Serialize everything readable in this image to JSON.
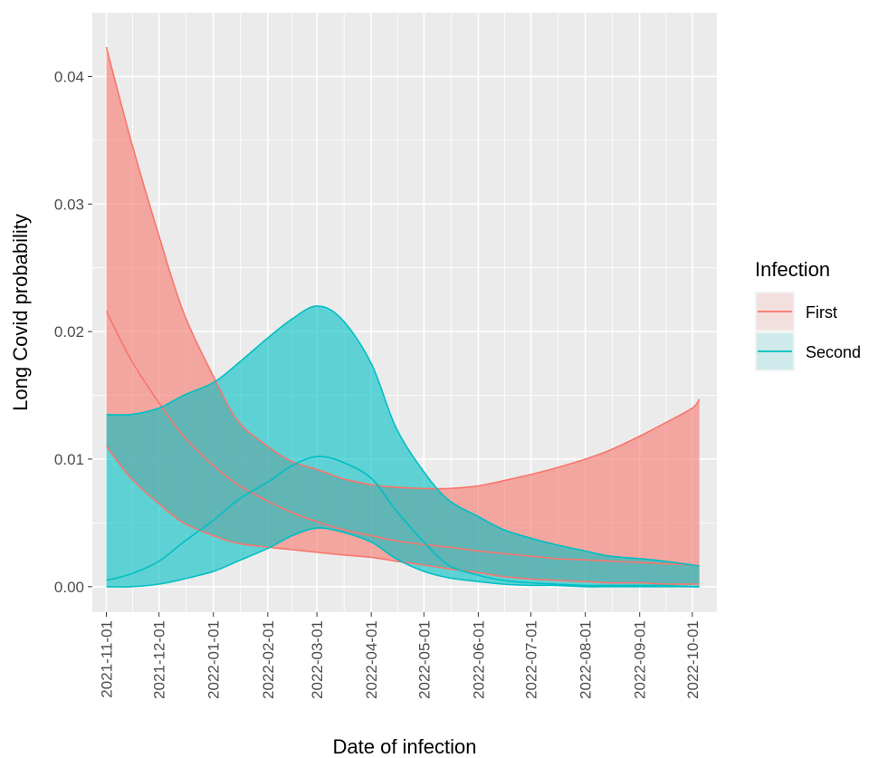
{
  "chart_data": {
    "type": "area",
    "xlabel": "Date of infection",
    "ylabel": "Long Covid probability",
    "xlim": [
      "2021-10-24",
      "2022-10-15"
    ],
    "ylim": [
      -0.002,
      0.045
    ],
    "x_ticks": [
      "2021-11-01",
      "2021-12-01",
      "2022-01-01",
      "2022-02-01",
      "2022-03-01",
      "2022-04-01",
      "2022-05-01",
      "2022-06-01",
      "2022-07-01",
      "2022-08-01",
      "2022-09-01",
      "2022-10-01"
    ],
    "y_ticks": [
      0.0,
      0.01,
      0.02,
      0.03,
      0.04
    ],
    "y_tick_labels": [
      "0.00",
      "0.01",
      "0.02",
      "0.03",
      "0.04"
    ],
    "grid": true,
    "legend": {
      "title": "Infection",
      "position": "right"
    },
    "series": [
      {
        "name": "First",
        "color": "#F8766D",
        "x": [
          "2021-11-01",
          "2021-11-15",
          "2021-12-01",
          "2021-12-15",
          "2022-01-01",
          "2022-01-15",
          "2022-02-01",
          "2022-02-15",
          "2022-03-01",
          "2022-03-15",
          "2022-04-01",
          "2022-04-15",
          "2022-05-01",
          "2022-05-15",
          "2022-06-01",
          "2022-06-15",
          "2022-07-01",
          "2022-07-15",
          "2022-08-01",
          "2022-08-15",
          "2022-09-01",
          "2022-09-15",
          "2022-10-01",
          "2022-10-05"
        ],
        "mid": [
          0.0216,
          0.0178,
          0.0144,
          0.0118,
          0.0095,
          0.008,
          0.0067,
          0.0058,
          0.0051,
          0.0045,
          0.004,
          0.0036,
          0.0033,
          0.0031,
          0.0028,
          0.0026,
          0.0024,
          0.0022,
          0.0021,
          0.002,
          0.0019,
          0.0018,
          0.0017,
          0.0016
        ],
        "upper": [
          0.0423,
          0.035,
          0.0275,
          0.0215,
          0.0165,
          0.013,
          0.011,
          0.0098,
          0.0092,
          0.0085,
          0.008,
          0.0078,
          0.0077,
          0.0077,
          0.0079,
          0.0083,
          0.0088,
          0.0093,
          0.01,
          0.0107,
          0.0118,
          0.0128,
          0.014,
          0.0147
        ],
        "lower": [
          0.011,
          0.0085,
          0.0065,
          0.005,
          0.004,
          0.0034,
          0.0031,
          0.0029,
          0.0027,
          0.0025,
          0.0023,
          0.002,
          0.0017,
          0.0014,
          0.0011,
          0.0008,
          0.0006,
          0.0005,
          0.0004,
          0.0003,
          0.0003,
          0.0002,
          0.0002,
          0.0002
        ]
      },
      {
        "name": "Second",
        "color": "#00BFC4",
        "x": [
          "2021-11-01",
          "2021-11-15",
          "2021-12-01",
          "2021-12-15",
          "2022-01-01",
          "2022-01-15",
          "2022-02-01",
          "2022-02-15",
          "2022-03-01",
          "2022-03-15",
          "2022-04-01",
          "2022-04-15",
          "2022-05-01",
          "2022-05-15",
          "2022-06-01",
          "2022-06-15",
          "2022-07-01",
          "2022-07-15",
          "2022-08-01",
          "2022-08-15",
          "2022-09-01",
          "2022-09-15",
          "2022-10-01",
          "2022-10-05"
        ],
        "mid": [
          0.0005,
          0.001,
          0.002,
          0.0035,
          0.0052,
          0.0068,
          0.0082,
          0.0095,
          0.0102,
          0.0098,
          0.0085,
          0.006,
          0.0035,
          0.0017,
          0.0009,
          0.0005,
          0.0003,
          0.0002,
          0.0001,
          0.0001,
          0.0001,
          0.0001,
          0.0,
          0.0
        ],
        "upper": [
          0.0135,
          0.0135,
          0.014,
          0.015,
          0.016,
          0.0175,
          0.0195,
          0.021,
          0.022,
          0.021,
          0.0175,
          0.0125,
          0.009,
          0.0068,
          0.0055,
          0.0045,
          0.0038,
          0.0033,
          0.0028,
          0.0024,
          0.0022,
          0.002,
          0.0017,
          0.0016
        ],
        "lower": [
          0.0,
          0.0,
          0.0002,
          0.0006,
          0.0012,
          0.002,
          0.003,
          0.004,
          0.0046,
          0.0043,
          0.0035,
          0.0022,
          0.0012,
          0.0007,
          0.0004,
          0.0002,
          0.0001,
          0.0001,
          0.0,
          0.0,
          0.0,
          0.0,
          0.0,
          0.0
        ]
      }
    ]
  }
}
